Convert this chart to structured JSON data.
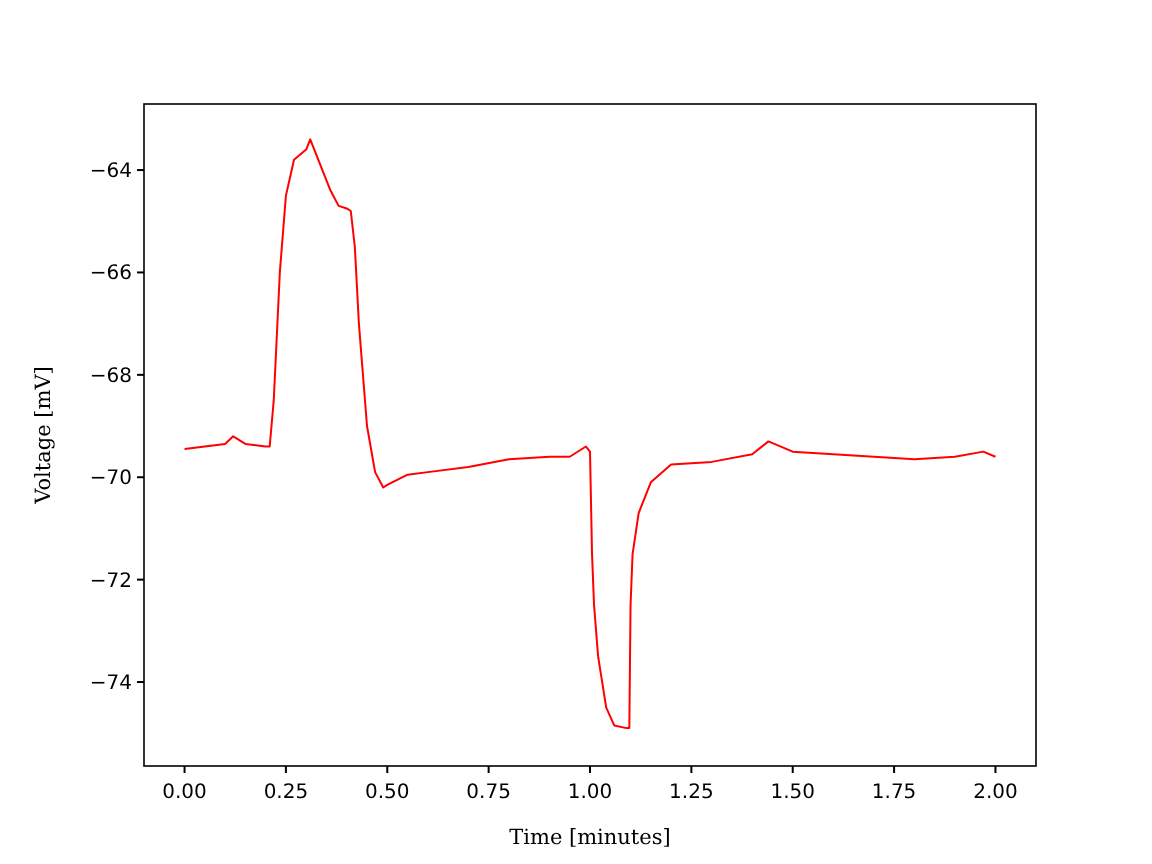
{
  "chart_data": {
    "type": "line",
    "xlabel": "Time [minutes]",
    "ylabel": "Voltage [mV]",
    "series": [
      {
        "color": "#ff0000",
        "x": [
          0,
          0.05,
          0.1,
          0.12,
          0.15,
          0.2,
          0.21,
          0.22,
          0.235,
          0.25,
          0.27,
          0.3,
          0.31,
          0.33,
          0.36,
          0.38,
          0.4,
          0.41,
          0.42,
          0.43,
          0.45,
          0.47,
          0.49,
          0.5,
          0.55,
          0.6,
          0.7,
          0.8,
          0.9,
          0.95,
          0.99,
          1.0,
          1.005,
          1.01,
          1.02,
          1.04,
          1.06,
          1.09,
          1.097,
          1.1,
          1.105,
          1.12,
          1.15,
          1.2,
          1.3,
          1.4,
          1.44,
          1.5,
          1.6,
          1.7,
          1.8,
          1.9,
          1.97,
          2.0
        ],
        "values": [
          -69.45,
          -69.4,
          -69.35,
          -69.2,
          -69.35,
          -69.4,
          -69.4,
          -68.5,
          -66,
          -64.5,
          -63.8,
          -63.6,
          -63.4,
          -63.8,
          -64.4,
          -64.7,
          -64.75,
          -64.8,
          -65.5,
          -67,
          -69,
          -69.9,
          -70.2,
          -70.15,
          -69.95,
          -69.9,
          -69.8,
          -69.65,
          -69.6,
          -69.6,
          -69.4,
          -69.5,
          -71.5,
          -72.5,
          -73.5,
          -74.5,
          -74.85,
          -74.9,
          -74.9,
          -72.5,
          -71.5,
          -70.7,
          -70.1,
          -69.75,
          -69.7,
          -69.55,
          -69.3,
          -69.5,
          -69.55,
          -69.6,
          -69.65,
          -69.6,
          -69.5,
          -69.6
        ]
      }
    ],
    "xlim": [
      -0.1,
      2.1
    ],
    "ylim": [
      -75.64,
      -62.71
    ],
    "xticks": [
      {
        "value": 0,
        "label": "0.00"
      },
      {
        "value": 0.25,
        "label": "0.25"
      },
      {
        "value": 0.5,
        "label": "0.50"
      },
      {
        "value": 0.75,
        "label": "0.75"
      },
      {
        "value": 1,
        "label": "1.00"
      },
      {
        "value": 1.25,
        "label": "1.25"
      },
      {
        "value": 1.5,
        "label": "1.50"
      },
      {
        "value": 1.75,
        "label": "1.75"
      },
      {
        "value": 2,
        "label": "2.00"
      }
    ],
    "yticks": [
      {
        "value": -74,
        "label": "−74"
      },
      {
        "value": -72,
        "label": "−72"
      },
      {
        "value": -70,
        "label": "−70"
      },
      {
        "value": -68,
        "label": "−68"
      },
      {
        "value": -66,
        "label": "−66"
      },
      {
        "value": -64,
        "label": "−64"
      }
    ],
    "grid": false,
    "marker": "none",
    "line_style": "solid"
  }
}
